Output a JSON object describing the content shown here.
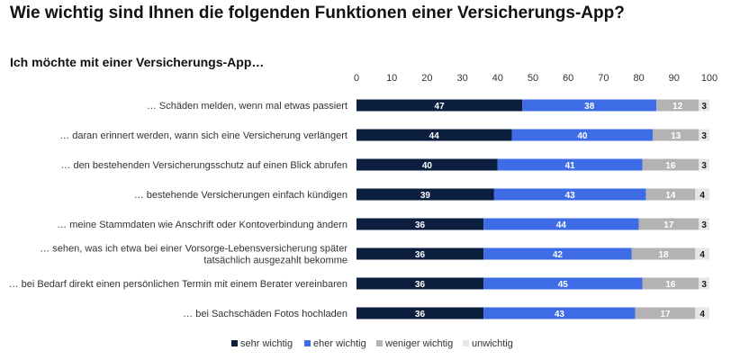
{
  "title": "Wie wichtig sind Ihnen die folgenden Funktionen einer Versicherungs-App?",
  "subtitle": "Ich möchte mit einer Versicherungs-App…",
  "chart_data": {
    "type": "bar",
    "orientation": "horizontal",
    "stacked": true,
    "xlim": [
      0,
      100
    ],
    "xticks": [
      0,
      10,
      20,
      30,
      40,
      50,
      60,
      70,
      80,
      90,
      100
    ],
    "grid": false,
    "legend_position": "bottom",
    "categories": [
      [
        "… Schäden melden, wenn mal etwas passiert"
      ],
      [
        "… daran erinnert werden, wann sich eine Versicherung verlängert"
      ],
      [
        "… den bestehenden Versicherungsschutz auf einen Blick abrufen"
      ],
      [
        "… bestehende Versicherungen einfach kündigen"
      ],
      [
        "… meine Stammdaten wie Anschrift oder Kontoverbindung ändern"
      ],
      [
        "… sehen, was ich etwa bei einer Vorsorge-Lebensversicherung später",
        "tatsächlich ausgezahlt bekomme"
      ],
      [
        "… bei Bedarf direkt einen persönlichen Termin mit einem Berater vereinbaren"
      ],
      [
        "… bei Sachschäden Fotos hochladen"
      ]
    ],
    "series": [
      {
        "name": "sehr wichtig",
        "color": "#0b1e3d",
        "label_color": "#ffffff",
        "values": [
          47,
          44,
          40,
          39,
          36,
          36,
          36,
          36
        ]
      },
      {
        "name": "eher wichtig",
        "color": "#3d6ce6",
        "label_color": "#ffffff",
        "values": [
          38,
          40,
          41,
          43,
          44,
          42,
          45,
          43
        ]
      },
      {
        "name": "weniger wichtig",
        "color": "#b3b3b3",
        "label_color": "#ffffff",
        "values": [
          12,
          13,
          16,
          14,
          17,
          18,
          16,
          17
        ]
      },
      {
        "name": "unwichtig",
        "color": "#e6e6e6",
        "label_color": "#1a1a1a",
        "values": [
          3,
          3,
          3,
          4,
          3,
          4,
          3,
          4
        ]
      }
    ]
  }
}
